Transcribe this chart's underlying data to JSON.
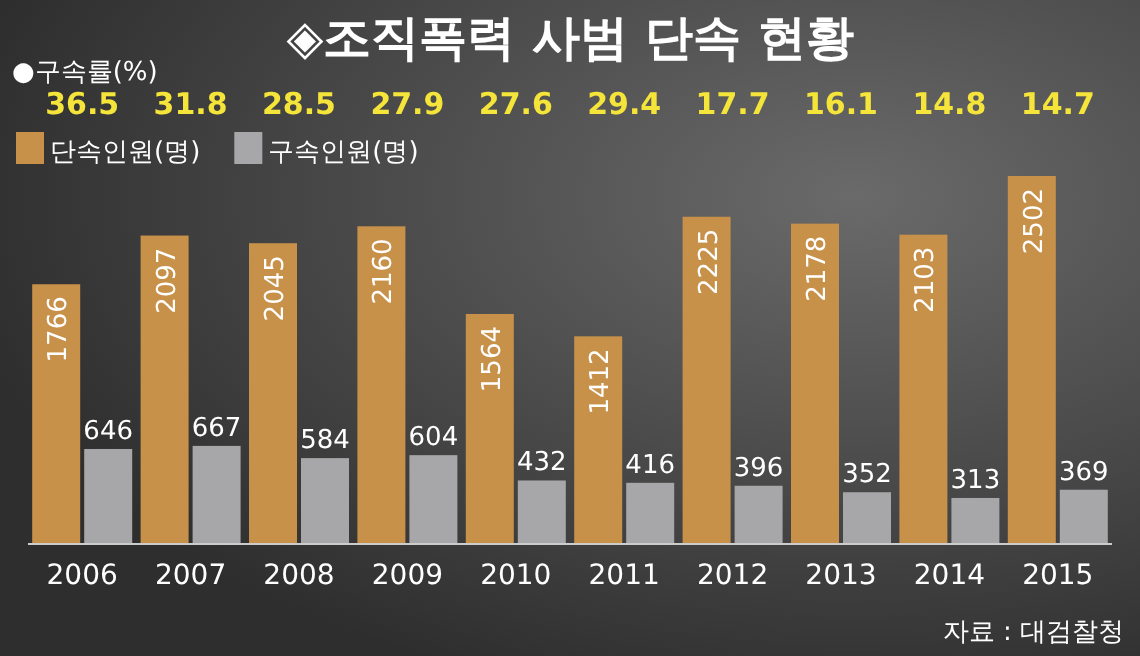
{
  "chart_data": {
    "type": "bar",
    "title": "◈조직폭력 사범 단속 현황",
    "categories": [
      "2006",
      "2007",
      "2008",
      "2009",
      "2010",
      "2011",
      "2012",
      "2013",
      "2014",
      "2015"
    ],
    "series": [
      {
        "name": "단속인원(명)",
        "color": "#c8914a",
        "values": [
          1766,
          2097,
          2045,
          2160,
          1564,
          1412,
          2225,
          2178,
          2103,
          2502
        ]
      },
      {
        "name": "구속인원(명)",
        "color": "#a7a6a8",
        "values": [
          646,
          667,
          584,
          604,
          432,
          416,
          396,
          352,
          313,
          369
        ]
      }
    ],
    "data_labels": true,
    "legend": "top left",
    "annotations": [
      "●구속률(%)",
      "36.5",
      "31.8",
      "28.5",
      "27.9",
      "27.6",
      "29.4",
      "17.7",
      "16.1",
      "14.8",
      "14.7",
      "자료 : 대검찰청"
    ]
  }
}
